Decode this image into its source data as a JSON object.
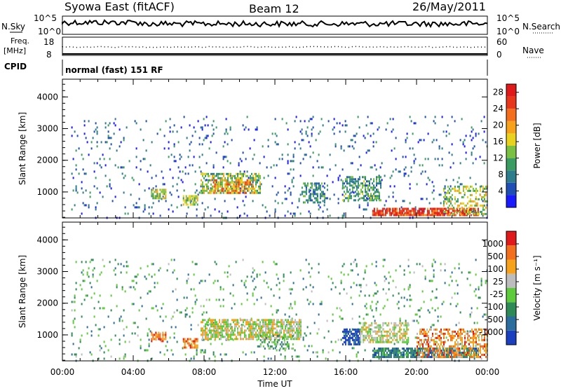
{
  "header": {
    "radar": "Syowa East (fitACF)",
    "beam": "Beam 12",
    "date": "26/May/2011"
  },
  "summary_panels": {
    "nsky_label": "N.Sky",
    "nsearch_label": "N.Search",
    "nsky_ticks": [
      "10^5",
      "10^0"
    ],
    "nsearch_ticks": [
      "10^5",
      "10^0"
    ],
    "freq_label_1": "Freq.",
    "freq_label_2": "[MHz]",
    "freq_ticks": [
      "18",
      "8"
    ],
    "nave_label": "Nave",
    "nave_ticks": [
      "60",
      "0"
    ],
    "cpid_label": "CPID",
    "cpid_text": "normal (fast) 151 RF"
  },
  "chart_data": [
    {
      "type": "heatmap",
      "title": "",
      "quantity": "Power",
      "xlabel": "",
      "ylabel": "Slant Range [km]",
      "xlim": [
        "00:00",
        "24:00"
      ],
      "ylim": [
        180,
        4560
      ],
      "y_ticks": [
        "1000",
        "2000",
        "3000",
        "4000"
      ],
      "colorbar": {
        "label": "Power [dB]",
        "range": [
          0,
          30
        ],
        "ticks": [
          "4",
          "8",
          "12",
          "16",
          "20",
          "24",
          "28"
        ],
        "colors": [
          "#1a1aff",
          "#1f4fb4",
          "#2e7d8c",
          "#3a9c60",
          "#7ac143",
          "#e8d21e",
          "#f7a21c",
          "#f46f1d",
          "#e8381c",
          "#e01a1a"
        ]
      },
      "echo_regions": [
        {
          "t0": 0.5,
          "t1": 24.0,
          "r0": 180,
          "r1": 3400,
          "level": 0.18,
          "density": 0.05
        },
        {
          "t0": 5.0,
          "t1": 5.8,
          "r0": 800,
          "r1": 1100,
          "level": 0.45,
          "density": 0.7
        },
        {
          "t0": 6.8,
          "t1": 7.6,
          "r0": 600,
          "r1": 900,
          "level": 0.5,
          "density": 0.7
        },
        {
          "t0": 7.8,
          "t1": 11.2,
          "r0": 950,
          "r1": 1600,
          "level": 0.45,
          "density": 0.6
        },
        {
          "t0": 8.5,
          "t1": 10.8,
          "r0": 1000,
          "r1": 1400,
          "level": 0.7,
          "density": 0.5
        },
        {
          "t0": 13.5,
          "t1": 15.0,
          "r0": 700,
          "r1": 1300,
          "level": 0.3,
          "density": 0.4
        },
        {
          "t0": 15.8,
          "t1": 18.0,
          "r0": 750,
          "r1": 1500,
          "level": 0.35,
          "density": 0.5
        },
        {
          "t0": 17.5,
          "t1": 23.5,
          "r0": 280,
          "r1": 500,
          "level": 0.85,
          "density": 0.8
        },
        {
          "t0": 21.5,
          "t1": 24.0,
          "r0": 300,
          "r1": 1200,
          "level": 0.5,
          "density": 0.4
        }
      ]
    },
    {
      "type": "heatmap",
      "title": "",
      "quantity": "Velocity",
      "xlabel": "Time UT",
      "ylabel": "Slant Range [km]",
      "xlim": [
        "00:00",
        "24:00"
      ],
      "x_ticks": [
        "00:00",
        "04:00",
        "08:00",
        "12:00",
        "16:00",
        "20:00",
        "00:00"
      ],
      "ylim": [
        180,
        4560
      ],
      "y_ticks": [
        "1000",
        "2000",
        "3000",
        "4000"
      ],
      "colorbar": {
        "label": "Velocity [m s⁻¹]",
        "ticks": [
          "1000",
          "500",
          "100",
          "25",
          "-25",
          "-100",
          "-500",
          "-1000"
        ],
        "colors": [
          "#1a3fbf",
          "#2b6e9e",
          "#2e8b57",
          "#5ecc3a",
          "#bdbdbd",
          "#f7a21c",
          "#f46f1d",
          "#e01a1a"
        ]
      },
      "echo_regions": [
        {
          "t0": 0.5,
          "t1": 24.0,
          "r0": 180,
          "r1": 3400,
          "level": 0.35,
          "density": 0.05
        },
        {
          "t0": 5.0,
          "t1": 5.8,
          "r0": 800,
          "r1": 1100,
          "level": 0.8,
          "density": 0.7
        },
        {
          "t0": 6.8,
          "t1": 7.6,
          "r0": 600,
          "r1": 900,
          "level": 0.8,
          "density": 0.7
        },
        {
          "t0": 7.8,
          "t1": 13.5,
          "r0": 900,
          "r1": 1500,
          "level": 0.55,
          "density": 0.7
        },
        {
          "t0": 11.0,
          "t1": 13.0,
          "r0": 600,
          "r1": 1000,
          "level": 0.4,
          "density": 0.4
        },
        {
          "t0": 15.8,
          "t1": 16.8,
          "r0": 700,
          "r1": 1200,
          "level": 0.05,
          "density": 0.7
        },
        {
          "t0": 16.8,
          "t1": 19.5,
          "r0": 800,
          "r1": 1400,
          "level": 0.55,
          "density": 0.6
        },
        {
          "t0": 17.5,
          "t1": 23.5,
          "r0": 280,
          "r1": 600,
          "level": 0.25,
          "density": 0.8
        },
        {
          "t0": 20.0,
          "t1": 24.0,
          "r0": 300,
          "r1": 1200,
          "level": 0.75,
          "density": 0.5
        }
      ]
    }
  ]
}
